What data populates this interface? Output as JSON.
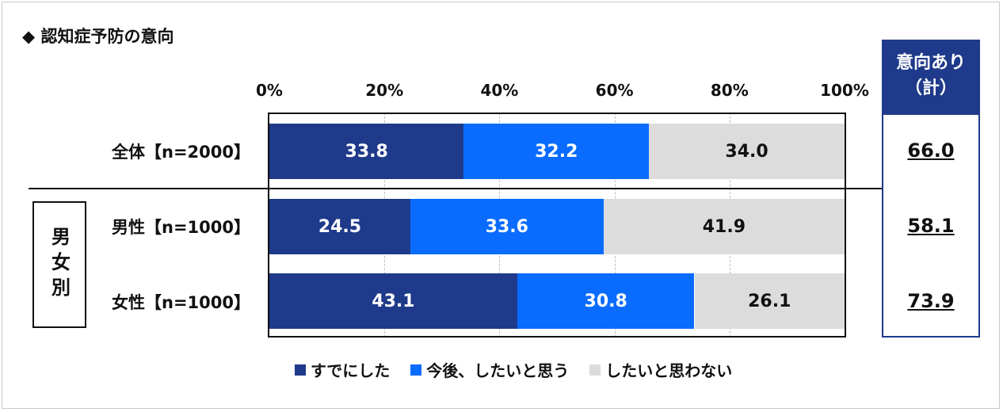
{
  "title": "◆ 認知症予防の意向",
  "chart_data": {
    "type": "bar",
    "orientation": "horizontal",
    "stacked": true,
    "x_ticks": [
      "0%",
      "20%",
      "40%",
      "60%",
      "80%",
      "100%"
    ],
    "xlim": [
      0,
      100
    ],
    "categories": [
      "全体【n=2000】",
      "男性【n=1000】",
      "女性【n=1000】"
    ],
    "group_label": "男女別",
    "series": [
      {
        "name": "すでにした",
        "color": "#1f3a8a",
        "text_color": "#ffffff",
        "values": [
          33.8,
          24.5,
          43.1
        ]
      },
      {
        "name": "今後、したいと思う",
        "color": "#0a6cff",
        "text_color": "#ffffff",
        "values": [
          32.2,
          33.6,
          30.8
        ]
      },
      {
        "name": "したいと思わない",
        "color": "#dcdcdc",
        "text_color": "#111111",
        "values": [
          34.0,
          41.9,
          26.1
        ]
      }
    ],
    "data_labels": [
      [
        "33.8",
        "32.2",
        "34.0"
      ],
      [
        "24.5",
        "33.6",
        "41.9"
      ],
      [
        "43.1",
        "30.8",
        "26.1"
      ]
    ],
    "legend_position": "bottom",
    "grid": true
  },
  "intent": {
    "header_line1": "意向あり",
    "header_line2": "（計）",
    "values": [
      "66.0",
      "58.1",
      "73.9"
    ]
  }
}
